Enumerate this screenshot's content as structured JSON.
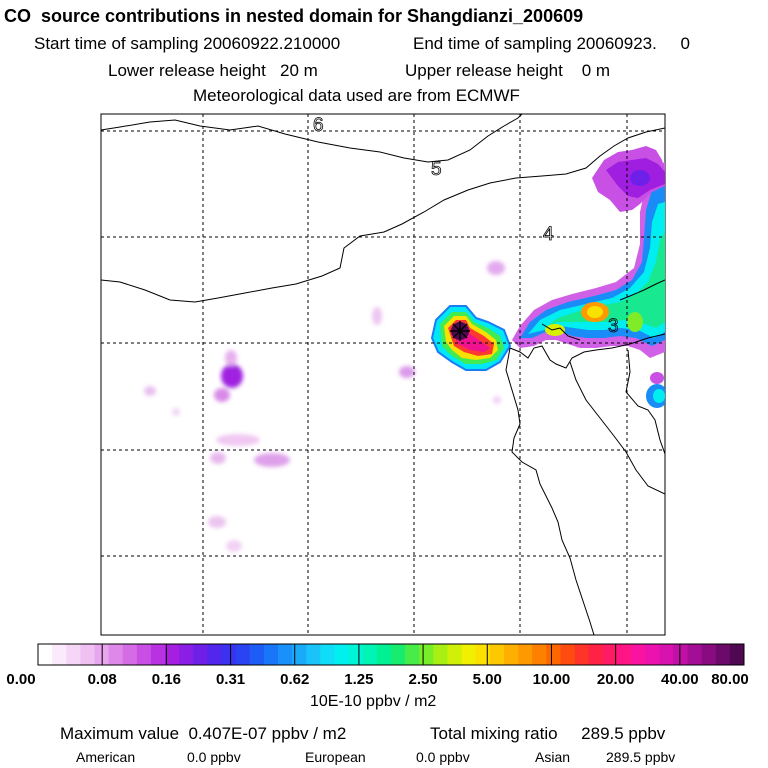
{
  "header": {
    "title": "CO  source contributions in nested domain for Shangdianzi_200609",
    "start_sampling": "Start time of sampling 20060922.210000",
    "end_sampling": "End time of sampling 20060923.     0",
    "lower_release": "Lower release height   20 m",
    "upper_release": "Upper release height    0 m",
    "meteo": "Meteorological data used are from ECMWF"
  },
  "map": {
    "day_labels": [
      "6",
      "5",
      "4",
      "3"
    ],
    "receptor_symbol": "star-marker"
  },
  "colorbar": {
    "tick_labels": [
      "0.00",
      "0.08",
      "0.16",
      "0.31",
      "0.62",
      "1.25",
      "2.50",
      "5.00",
      "10.00",
      "20.00",
      "40.00",
      "80.00"
    ],
    "unit": "10E-10 ppbv / m2",
    "colors": [
      "#ffffff",
      "#fbeafb",
      "#f6d6f6",
      "#f0c0f2",
      "#e8a6ee",
      "#de88ea",
      "#d46ce6",
      "#c84ee4",
      "#b832e2",
      "#a61ee0",
      "#8a1ee4",
      "#6e20e8",
      "#5226ec",
      "#3a32f0",
      "#2a44f4",
      "#1e5cf6",
      "#1a76f8",
      "#1a90fa",
      "#1aaafa",
      "#1ac4fa",
      "#10def8",
      "#00f0f0",
      "#00f4d6",
      "#00f4b4",
      "#00f094",
      "#18ec6e",
      "#48ec48",
      "#78ee28",
      "#a8f014",
      "#d0f008",
      "#f0f000",
      "#fce000",
      "#fec800",
      "#feb000",
      "#fe9a00",
      "#fe8000",
      "#fe6600",
      "#fe4c10",
      "#fe3428",
      "#fe2244",
      "#fe1a64",
      "#fe1484",
      "#fa12a0",
      "#ec12b0",
      "#d812ae",
      "#c010a6",
      "#a40e96",
      "#880c80",
      "#6c0a6a",
      "#500852"
    ]
  },
  "footer": {
    "max_value": "Maximum value  0.407E-07 ppbv / m2",
    "total": "Total mixing ratio     289.5 ppbv",
    "american_label": "American",
    "american_value": "0.0 ppbv",
    "european_label": "European",
    "european_value": "0.0 ppbv",
    "asian_label": "Asian",
    "asian_value": "289.5 ppbv"
  }
}
